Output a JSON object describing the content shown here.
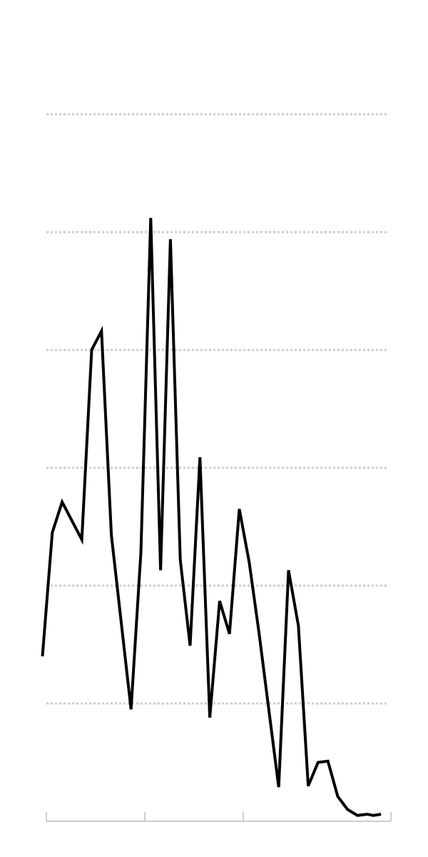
{
  "chart_data": {
    "type": "line",
    "title": "",
    "xlabel": "",
    "ylabel": "",
    "grid": true,
    "grid_values": [
      1,
      2,
      3,
      4,
      5,
      6
    ],
    "x_ticks": [
      0,
      10,
      20,
      35
    ],
    "xlim": [
      0,
      35
    ],
    "ylim": [
      0,
      7
    ],
    "colors": {
      "line": "#000000",
      "grid": "#cccccc",
      "axis": "#cccccc"
    },
    "series": [
      {
        "x": [
          -0.4,
          0.6,
          1.6,
          3.6,
          4.6,
          5.6,
          6.6,
          8.6,
          9.6,
          10.6,
          11.6,
          12.6,
          13.6,
          14.6,
          15.6,
          16.6,
          17.6,
          18.6,
          19.6,
          20.6,
          21.6,
          23.6,
          24.6,
          25.6,
          26.6,
          27.6,
          28.6,
          29.6,
          30.6,
          31.6,
          32.6,
          33.2,
          34.0
        ],
        "values": [
          1.4,
          2.45,
          2.71,
          2.39,
          4.0,
          4.16,
          2.43,
          0.95,
          2.28,
          5.12,
          2.13,
          4.94,
          2.22,
          1.49,
          3.09,
          0.88,
          1.87,
          1.59,
          2.65,
          2.2,
          1.6,
          0.29,
          2.13,
          1.66,
          0.3,
          0.5,
          0.51,
          0.21,
          0.1,
          0.05,
          0.06,
          0.05,
          0.06
        ]
      }
    ]
  }
}
